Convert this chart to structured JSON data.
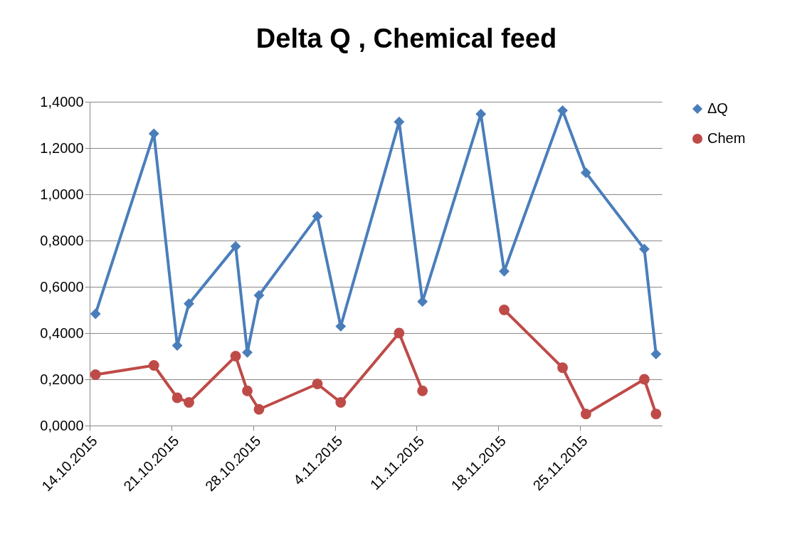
{
  "chart_data": {
    "type": "line",
    "title": "Delta Q , Chemical feed",
    "x": [
      "2015-10-14T12:00",
      "2015-10-19T12:00",
      "2015-10-21T12:00",
      "2015-10-22T12:00",
      "2015-10-26T12:00",
      "2015-10-27T12:00",
      "2015-10-28T12:00",
      "2015-11-02T12:00",
      "2015-11-04T12:00",
      "2015-11-09T12:00",
      "2015-11-11T12:00",
      "2015-11-16T12:00",
      "2015-11-18T12:00",
      "2015-11-23T12:00",
      "2015-11-25T12:00",
      "2015-11-30T12:00",
      "2015-12-01T12:00"
    ],
    "series": [
      {
        "name": "ΔQ",
        "color": "#4a7ebb",
        "marker": "diamond",
        "values": [
          0.483,
          1.262,
          0.346,
          0.527,
          0.775,
          0.316,
          0.563,
          0.905,
          0.429,
          1.313,
          0.536,
          1.347,
          0.667,
          1.362,
          1.093,
          0.763,
          0.309
        ]
      },
      {
        "name": "Chem",
        "color": "#be4b48",
        "marker": "circle",
        "values": [
          0.22,
          0.26,
          0.12,
          0.1,
          0.3,
          0.15,
          0.07,
          0.18,
          0.1,
          0.4,
          0.15,
          null,
          0.5,
          0.25,
          0.05,
          0.2,
          0.05
        ]
      }
    ],
    "xlim": [
      "2015-10-14",
      "2015-12-02"
    ],
    "xticks": [
      {
        "value": "2015-10-14",
        "label": "14.10.2015"
      },
      {
        "value": "2015-10-21",
        "label": "21.10.2015"
      },
      {
        "value": "2015-10-28",
        "label": "28.10.2015"
      },
      {
        "value": "2015-11-04",
        "label": "4.11.2015"
      },
      {
        "value": "2015-11-11",
        "label": "11.11.2015"
      },
      {
        "value": "2015-11-18",
        "label": "18.11.2015"
      },
      {
        "value": "2015-11-25",
        "label": "25.11.2015"
      }
    ],
    "ylim": [
      0,
      1.4
    ],
    "yticks": [
      {
        "value": 0,
        "label": "0,0000"
      },
      {
        "value": 0.2,
        "label": "0,2000"
      },
      {
        "value": 0.4,
        "label": "0,4000"
      },
      {
        "value": 0.6,
        "label": "0,6000"
      },
      {
        "value": 0.8,
        "label": "0,8000"
      },
      {
        "value": 1.0,
        "label": "1,0000"
      },
      {
        "value": 1.2,
        "label": "1,2000"
      },
      {
        "value": 1.4,
        "label": "1,4000"
      }
    ],
    "grid": "y",
    "legend": "right",
    "line_style": "solid"
  }
}
